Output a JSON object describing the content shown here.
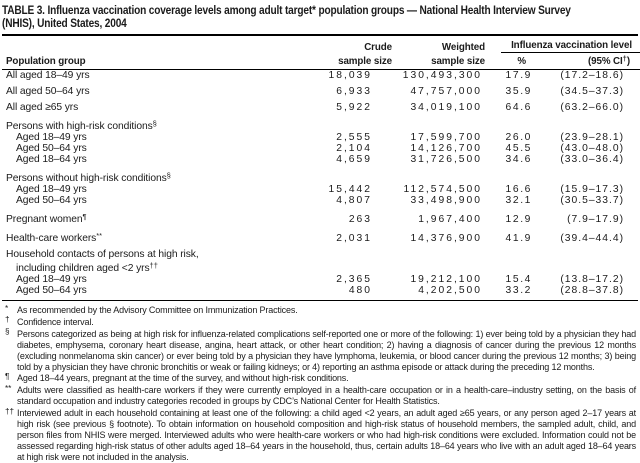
{
  "title_line1": "TABLE 3. Influenza vaccination coverage levels among adult target* population groups — National Health Interview Survey",
  "title_line2": "(NHIS), United States, 2004",
  "table": {
    "col_population": "Population group",
    "col_crude_line1": "Crude",
    "col_crude_line2": "sample size",
    "col_weighted_line1": "Weighted",
    "col_weighted_line2": "sample size",
    "spanner": "Influenza vaccination level",
    "col_pct": "%",
    "col_ci_pre": "(95% CI",
    "col_ci_sup": "†",
    "col_ci_post": ")",
    "rows": [
      {
        "label": "All aged 18–49 yrs",
        "crude": "18,039",
        "weighted": "130,493,300",
        "pct": "17.9",
        "ci": "(17.2–18.6)"
      },
      {
        "label": "All aged 50–64 yrs",
        "crude": "6,933",
        "weighted": "47,757,000",
        "pct": "35.9",
        "ci": "(34.5–37.3)",
        "gap": true
      },
      {
        "label": "All aged ≥65 yrs",
        "crude": "5,922",
        "weighted": "34,019,100",
        "pct": "64.6",
        "ci": "(63.2–66.0)",
        "gap": true
      },
      {
        "label": "Persons with high-risk conditions",
        "sup": "§",
        "group": true,
        "gap": true
      },
      {
        "label": "Aged 18–49 yrs",
        "indent": true,
        "crude": "2,555",
        "weighted": "17,599,700",
        "pct": "26.0",
        "ci": "(23.9–28.1)"
      },
      {
        "label": "Aged 50–64 yrs",
        "indent": true,
        "crude": "2,104",
        "weighted": "14,126,700",
        "pct": "45.5",
        "ci": "(43.0–48.0)"
      },
      {
        "label": "Aged 18–64 yrs",
        "indent": true,
        "crude": "4,659",
        "weighted": "31,726,500",
        "pct": "34.6",
        "ci": "(33.0–36.4)"
      },
      {
        "label": "Persons without high-risk conditions",
        "sup": "§",
        "group": true,
        "gap": true
      },
      {
        "label": "Aged 18–49 yrs",
        "indent": true,
        "crude": "15,442",
        "weighted": "112,574,500",
        "pct": "16.6",
        "ci": "(15.9–17.3)"
      },
      {
        "label": "Aged 50–64 yrs",
        "indent": true,
        "crude": "4,807",
        "weighted": "33,498,900",
        "pct": "32.1",
        "ci": "(30.5–33.7)"
      },
      {
        "label": "Pregnant women",
        "sup": "¶",
        "crude": "263",
        "weighted": "1,967,400",
        "pct": "12.9",
        "ci": "(7.9–17.9)",
        "gap": true
      },
      {
        "label": "Health-care workers",
        "sup": "**",
        "crude": "2,031",
        "weighted": "14,376,900",
        "pct": "41.9",
        "ci": "(39.4–44.4)",
        "gap": true
      },
      {
        "label": "Household contacts of persons at high risk,",
        "group": true,
        "gap": true
      },
      {
        "label": "including children aged <2 yrs",
        "sup": "††",
        "group": true,
        "indent": true
      },
      {
        "label": "Aged 18–49 yrs",
        "indent": true,
        "crude": "2,365",
        "weighted": "19,212,100",
        "pct": "15.4",
        "ci": "(13.8–17.2)"
      },
      {
        "label": "Aged 50–64 yrs",
        "indent": true,
        "crude": "480",
        "weighted": "4,202,500",
        "pct": "33.2",
        "ci": "(28.8–37.8)"
      }
    ]
  },
  "footnotes": [
    {
      "mark": "*",
      "text": "As recommended by the Advisory Committee on Immunization Practices."
    },
    {
      "mark": "†",
      "text": "Confidence interval."
    },
    {
      "mark": "§",
      "text": "Persons categorized as being at high risk for influenza-related complications self-reported one or more of the following: 1) ever being told by a physician they had diabetes, emphysema, coronary heart disease, angina, heart attack, or other heart condition; 2) having a diagnosis of cancer during the previous 12 months (excluding nonmelanoma skin cancer) or ever being told by a physician they have lymphoma, leukemia, or blood cancer during the previous 12 months; 3) being told by a physician they have chronic bronchitis or weak or failing kidneys; or 4) reporting an asthma episode or attack during the preceding 12 months."
    },
    {
      "mark": "¶",
      "text": "Aged 18–44 years, pregnant at the time of the survey, and without high-risk conditions."
    },
    {
      "mark": "**",
      "text": "Adults were classified as health-care workers if they were currently employed in a health-care occupation or in a health-care–industry setting, on the basis of standard occupation and industry categories recoded in groups by CDC’s National Center for Health Statistics."
    },
    {
      "mark": "††",
      "text": "Interviewed adult in each household containing at least one of the following: a child aged <2 years, an adult aged ≥65 years, or any person aged 2–17 years at high risk (see previous § footnote). To obtain information on household composition and high-risk status of household members, the sampled adult, child, and person files from NHIS were merged. Interviewed adults who were health-care workers or who had high-risk conditions were excluded. Information could not be assessed regarding high-risk status of other adults aged 18–64 years in the household, thus, certain adults 18–64 years who live with an adult aged 18–64 years at high risk were not included in the analysis."
    }
  ]
}
